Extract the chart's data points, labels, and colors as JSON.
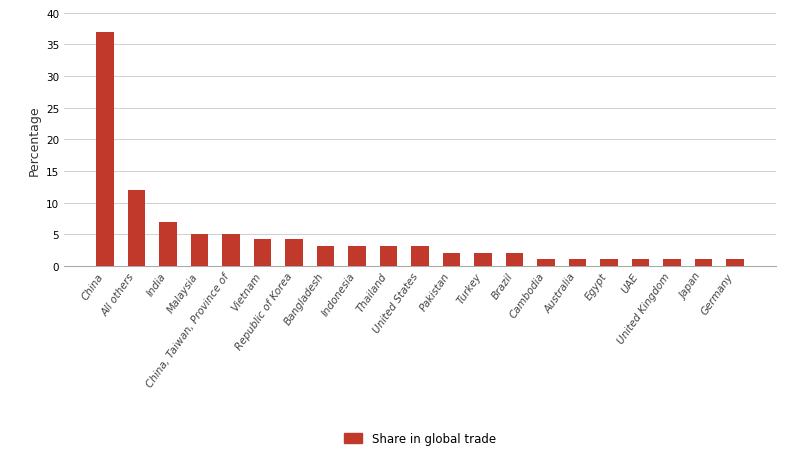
{
  "categories": [
    "China",
    "All others",
    "India",
    "Malaysia",
    "China, Taiwan, Province of",
    "Vietnam",
    "Republic of Korea",
    "Bangladesh",
    "Indonesia",
    "Thailand",
    "United States",
    "Pakistan",
    "Turkey",
    "Brazil",
    "Cambodia",
    "Australia",
    "Egypt",
    "UAE",
    "United Kingdom",
    "Japan",
    "Germany"
  ],
  "values": [
    37.0,
    12.0,
    7.0,
    5.0,
    5.0,
    4.3,
    4.3,
    3.1,
    3.1,
    3.1,
    3.1,
    2.0,
    2.0,
    2.0,
    1.0,
    1.0,
    1.0,
    1.0,
    1.0,
    1.0,
    1.0
  ],
  "bar_color": "#c0392b",
  "ylabel": "Percentage",
  "ylim": [
    0,
    40
  ],
  "yticks": [
    0,
    5,
    10,
    15,
    20,
    25,
    30,
    35,
    40
  ],
  "legend_label": "Share in global trade",
  "background_color": "#ffffff",
  "grid_color": "#d0d0d0",
  "tick_label_fontsize": 7.5,
  "ylabel_fontsize": 9,
  "legend_fontsize": 8.5,
  "bar_width": 0.55
}
